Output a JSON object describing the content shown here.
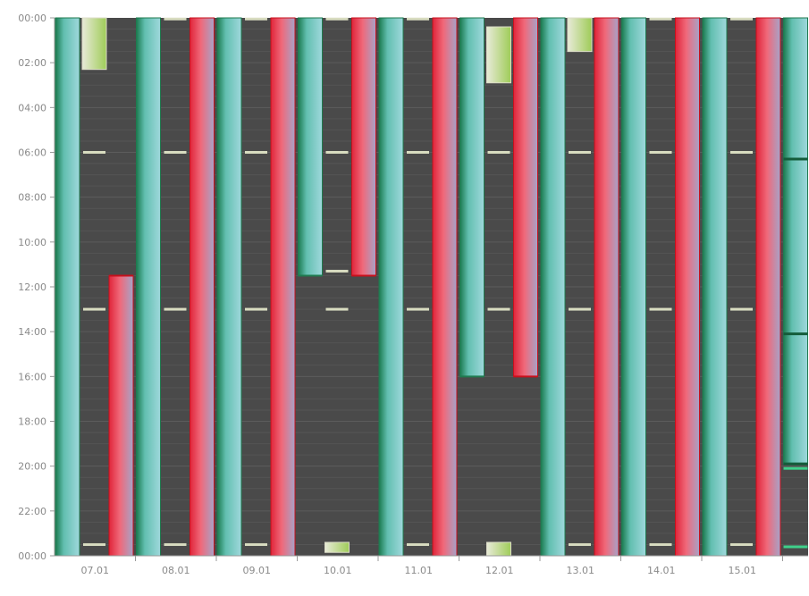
{
  "chart_data": {
    "type": "timeline",
    "y_axis": {
      "ticks": [
        "00:00",
        "02:00",
        "04:00",
        "06:00",
        "08:00",
        "10:00",
        "12:00",
        "14:00",
        "16:00",
        "18:00",
        "20:00",
        "22:00",
        "00:00"
      ],
      "range_hours": [
        0,
        24
      ]
    },
    "x_axis": {
      "categories": [
        "07.01",
        "08.01",
        "09.01",
        "10.01",
        "11.01",
        "12.01",
        "13.01",
        "14.01",
        "15.01",
        ""
      ]
    },
    "colors": {
      "background": "#4a4a4a",
      "teal": "#7fc9cc",
      "teal_edge": "#1f7a4f",
      "red": "#ea4c5a",
      "red_edge": "#c8101c",
      "slate": "#8f97b8",
      "marker": "#d8dcc0",
      "green_block": "#a5cf64"
    },
    "days": [
      {
        "label": "07.01",
        "teal": [
          [
            0,
            24
          ]
        ],
        "red": [
          [
            11.5,
            24
          ]
        ],
        "red_split": 11.5,
        "markers": [
          6,
          13,
          23.5
        ],
        "blocks": [
          [
            0,
            2.3
          ]
        ]
      },
      {
        "label": "08.01",
        "teal": [
          [
            0,
            24
          ]
        ],
        "red": [
          [
            0,
            24
          ]
        ],
        "markers": [
          0.05,
          6,
          13,
          23.5
        ],
        "blocks": []
      },
      {
        "label": "09.01",
        "teal": [
          [
            0,
            24
          ]
        ],
        "red": [
          [
            0,
            24
          ]
        ],
        "markers": [
          0.05,
          6,
          13,
          23.5
        ],
        "blocks": []
      },
      {
        "label": "10.01",
        "teal": [
          [
            0,
            11.5
          ]
        ],
        "red": [
          [
            0,
            11.5
          ]
        ],
        "teal_split": 11.5,
        "red_split": 11.5,
        "markers": [
          0.05,
          6,
          11.3,
          13
        ],
        "blocks": [
          [
            23.4,
            23.85
          ]
        ]
      },
      {
        "label": "11.01",
        "teal": [
          [
            0,
            24
          ]
        ],
        "red": [
          [
            0,
            24
          ]
        ],
        "markers": [
          0.05,
          6,
          13,
          23.5
        ],
        "blocks": []
      },
      {
        "label": "12.01",
        "teal": [
          [
            0,
            16
          ]
        ],
        "red": [
          [
            0,
            16
          ]
        ],
        "teal_split": 16,
        "red_split": 16,
        "markers": [
          6,
          13
        ],
        "blocks": [
          [
            0.4,
            2.9
          ],
          [
            23.4,
            24
          ]
        ]
      },
      {
        "label": "13.01",
        "teal": [
          [
            0,
            24
          ]
        ],
        "red": [
          [
            0,
            24
          ]
        ],
        "markers": [
          6,
          13,
          23.5
        ],
        "blocks": [
          [
            0,
            1.5
          ]
        ]
      },
      {
        "label": "14.01",
        "teal": [
          [
            0,
            24
          ]
        ],
        "red": [
          [
            0,
            24
          ]
        ],
        "markers": [
          0.05,
          6,
          13,
          23.5
        ],
        "blocks": []
      },
      {
        "label": "15.01",
        "teal": [
          [
            0,
            24
          ]
        ],
        "red": [
          [
            0,
            24
          ]
        ],
        "markers": [
          0.05,
          6,
          13,
          23.5
        ],
        "blocks": []
      }
    ],
    "last_partial": {
      "label": "",
      "teal": [
        [
          0,
          6.3
        ],
        [
          6.3,
          14.1
        ],
        [
          14.1,
          19.9
        ]
      ],
      "lines": [
        20.1,
        23.6
      ]
    }
  }
}
